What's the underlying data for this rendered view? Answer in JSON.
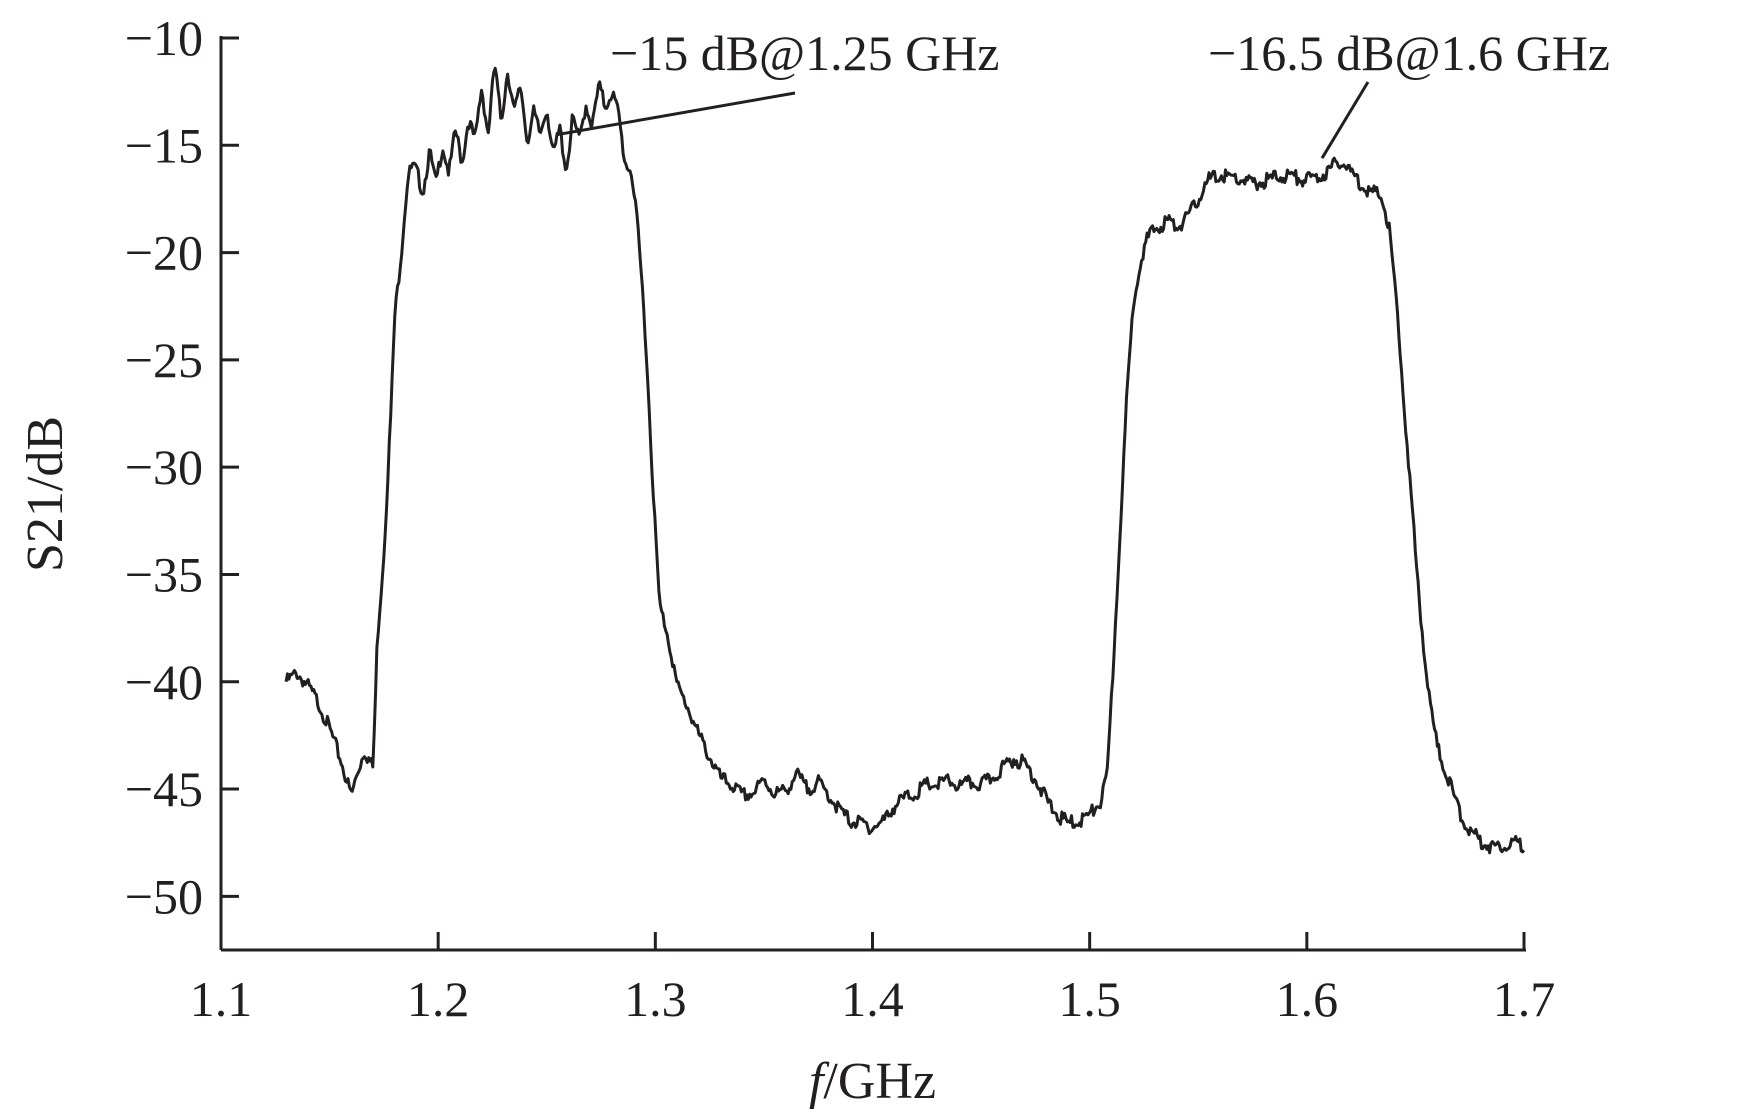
{
  "chart_data": {
    "type": "line",
    "title": "",
    "xlabel_italic": "f",
    "xlabel_rest": "/GHz",
    "ylabel": "S21/dB",
    "xlim": [
      1.1,
      1.7
    ],
    "ylim": [
      -52.5,
      -10
    ],
    "x_ticks": [
      1.1,
      1.2,
      1.3,
      1.4,
      1.5,
      1.6,
      1.7
    ],
    "x_tick_labels": [
      "1.1",
      "1.2",
      "1.3",
      "1.4",
      "1.5",
      "1.6",
      "1.7"
    ],
    "y_ticks": [
      -10,
      -15,
      -20,
      -25,
      -30,
      -35,
      -40,
      -45,
      -50
    ],
    "y_tick_labels": [
      "−10",
      "−15",
      "−20",
      "−25",
      "−30",
      "−35",
      "−40",
      "−45",
      "−50"
    ],
    "grid": false,
    "series": [
      {
        "x": [
          1.13,
          1.135,
          1.14,
          1.145,
          1.15,
          1.155,
          1.16,
          1.163,
          1.166,
          1.17,
          1.172,
          1.175,
          1.178,
          1.18,
          1.183,
          1.186,
          1.188,
          1.19,
          1.193,
          1.196,
          1.199,
          1.202,
          1.205,
          1.208,
          1.211,
          1.214,
          1.217,
          1.22,
          1.223,
          1.226,
          1.229,
          1.232,
          1.235,
          1.238,
          1.241,
          1.244,
          1.247,
          1.25,
          1.253,
          1.256,
          1.259,
          1.262,
          1.265,
          1.268,
          1.271,
          1.274,
          1.277,
          1.28,
          1.283,
          1.286,
          1.289,
          1.292,
          1.295,
          1.298,
          1.3,
          1.302,
          1.305,
          1.308,
          1.31,
          1.315,
          1.32,
          1.325,
          1.33,
          1.335,
          1.34,
          1.345,
          1.35,
          1.355,
          1.36,
          1.365,
          1.37,
          1.375,
          1.38,
          1.385,
          1.39,
          1.395,
          1.4,
          1.405,
          1.41,
          1.415,
          1.42,
          1.425,
          1.43,
          1.435,
          1.44,
          1.445,
          1.45,
          1.455,
          1.46,
          1.465,
          1.47,
          1.475,
          1.48,
          1.485,
          1.49,
          1.495,
          1.5,
          1.505,
          1.508,
          1.511,
          1.514,
          1.517,
          1.52,
          1.523,
          1.526,
          1.529,
          1.532,
          1.536,
          1.54,
          1.545,
          1.55,
          1.555,
          1.56,
          1.565,
          1.57,
          1.575,
          1.58,
          1.585,
          1.59,
          1.595,
          1.6,
          1.605,
          1.61,
          1.615,
          1.62,
          1.625,
          1.63,
          1.635,
          1.638,
          1.641,
          1.644,
          1.647,
          1.65,
          1.653,
          1.656,
          1.66,
          1.665,
          1.67,
          1.675,
          1.68,
          1.685,
          1.69,
          1.695,
          1.7
        ],
        "y": [
          -40,
          -39.6,
          -40.2,
          -41,
          -42.2,
          -43.6,
          -45.3,
          -44.2,
          -43.2,
          -44,
          -38,
          -34,
          -28,
          -23,
          -20,
          -16.5,
          -16,
          -16.2,
          -17.2,
          -15.3,
          -16.8,
          -15,
          -16.3,
          -14.3,
          -15.8,
          -13.8,
          -14.8,
          -12.3,
          -14.5,
          -11.2,
          -13.9,
          -11.5,
          -13.5,
          -12.2,
          -14.8,
          -13.5,
          -14.5,
          -13.2,
          -15.5,
          -14.2,
          -16.2,
          -13.7,
          -14.8,
          -13.1,
          -14.1,
          -12.2,
          -13.2,
          -12.5,
          -13.5,
          -15.8,
          -16.2,
          -19,
          -23,
          -29,
          -33,
          -36.5,
          -37.5,
          -39,
          -40.2,
          -41.2,
          -42.5,
          -43.5,
          -44.5,
          -44.8,
          -45.3,
          -45.2,
          -44.6,
          -45.2,
          -45.1,
          -44.3,
          -45,
          -44.7,
          -45.3,
          -46,
          -46.5,
          -46.6,
          -46.8,
          -46.5,
          -45.8,
          -45.4,
          -45.2,
          -44.8,
          -44.8,
          -44.6,
          -44.9,
          -44.7,
          -44.8,
          -44.5,
          -44,
          -43.6,
          -43.8,
          -44.5,
          -45.5,
          -46.2,
          -46.6,
          -46.5,
          -46.2,
          -45.6,
          -44.5,
          -39,
          -33,
          -27,
          -22.5,
          -20.5,
          -19.5,
          -19,
          -18.8,
          -18.5,
          -18.8,
          -18.4,
          -17.5,
          -16.6,
          -16.4,
          -16.5,
          -16.6,
          -16.8,
          -16.7,
          -16.5,
          -16.4,
          -16.5,
          -16.6,
          -16.5,
          -16.2,
          -15.7,
          -16.2,
          -16.8,
          -17.2,
          -17.4,
          -19,
          -22,
          -26,
          -30,
          -34,
          -37.5,
          -40.5,
          -43,
          -44.5,
          -46,
          -47,
          -47.4,
          -47.7,
          -47.6,
          -47.5,
          -47.6
        ]
      }
    ],
    "annotations": [
      {
        "text": "−15 dB@1.25 GHz",
        "point": [
          1.255,
          -14.5
        ],
        "label_anchor": [
          1.36,
          -12.8
        ]
      },
      {
        "text": "−16.5 dB@1.6 GHz",
        "point": [
          1.607,
          -15.6
        ],
        "label_anchor": [
          1.62,
          -12.2
        ]
      }
    ]
  }
}
